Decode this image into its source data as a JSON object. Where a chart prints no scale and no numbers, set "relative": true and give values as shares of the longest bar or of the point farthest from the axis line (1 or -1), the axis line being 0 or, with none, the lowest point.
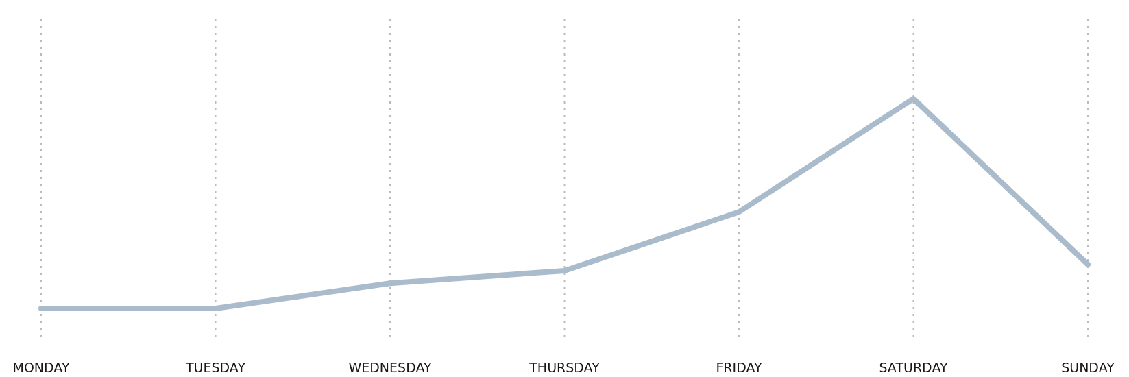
{
  "chart_data": {
    "type": "line",
    "relative": true,
    "categories": [
      "MONDAY",
      "TUESDAY",
      "WEDNESDAY",
      "THURSDAY",
      "FRIDAY",
      "SATURDAY",
      "SUNDAY"
    ],
    "series": [
      {
        "color": "#aabbcc",
        "values": [
          0,
          0,
          0.12,
          0.18,
          0.46,
          1,
          0.21
        ]
      }
    ],
    "grid": "x",
    "marker": "none",
    "line_style": "solid"
  }
}
